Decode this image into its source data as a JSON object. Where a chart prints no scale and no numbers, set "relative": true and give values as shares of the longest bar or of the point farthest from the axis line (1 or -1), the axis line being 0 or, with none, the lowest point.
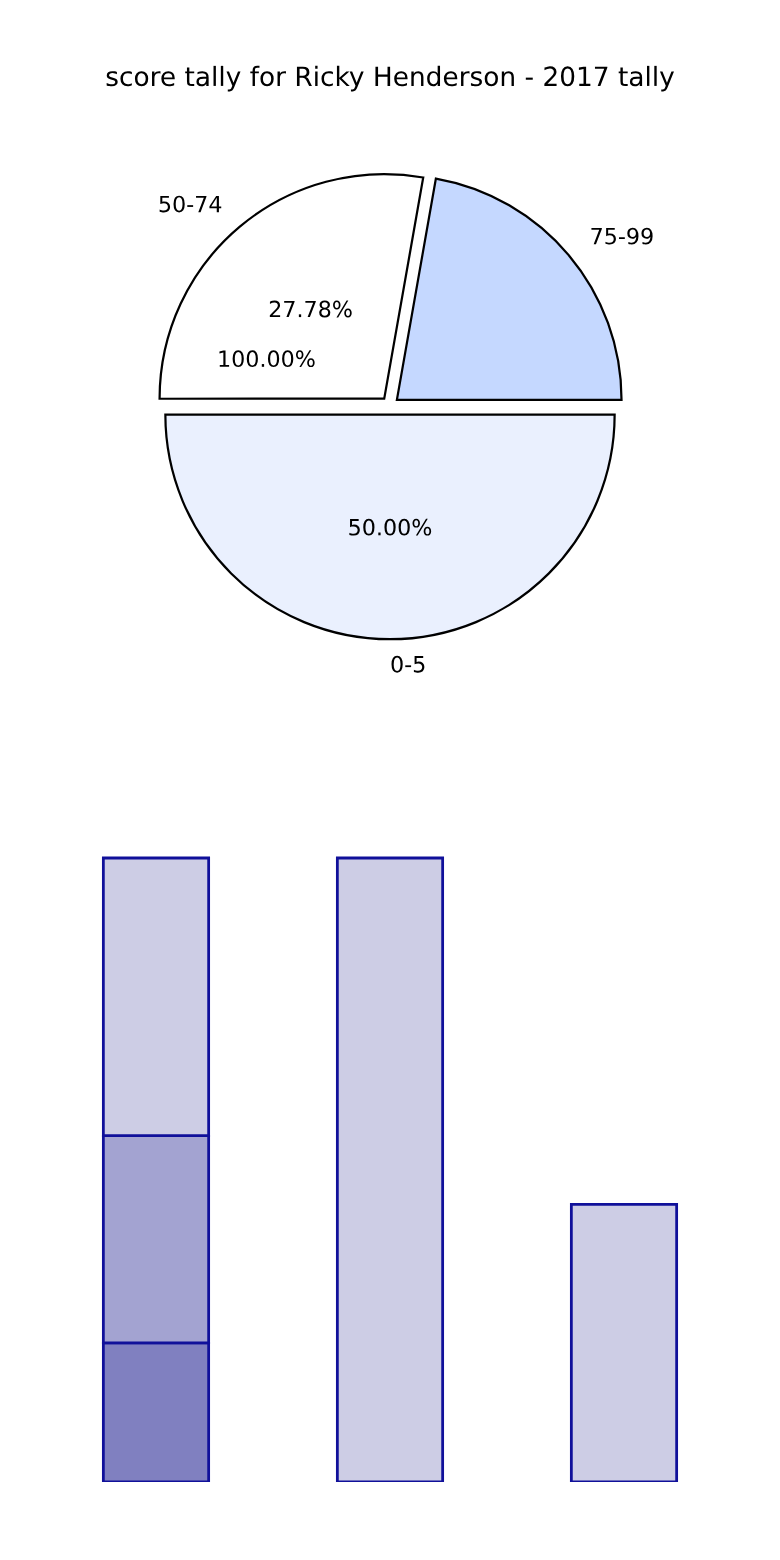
{
  "chart_data": [
    {
      "type": "pie",
      "title": "score tally for Ricky Henderson - 2017 tally",
      "categories": [
        "50-74",
        "0-5",
        "75-99"
      ],
      "values": [
        27.78,
        50.0,
        22.22
      ],
      "colors": [
        "#ffffff",
        "#eaf0fe",
        "#c5d8ff"
      ],
      "value_labels": [
        "27.78%",
        "50.00%",
        null
      ],
      "annotations": [
        "100.00%"
      ]
    },
    {
      "type": "bar",
      "stacked": true,
      "relative": true,
      "categories": [
        null,
        null,
        null
      ],
      "series": [
        {
          "color": "#8080c0",
          "values": [
            0.223,
            null,
            null
          ]
        },
        {
          "color": "#a3a3d1",
          "values": [
            0.332,
            null,
            null
          ]
        },
        {
          "color": "#cdcde5",
          "values": [
            0.445,
            1,
            0.445
          ]
        }
      ]
    }
  ]
}
